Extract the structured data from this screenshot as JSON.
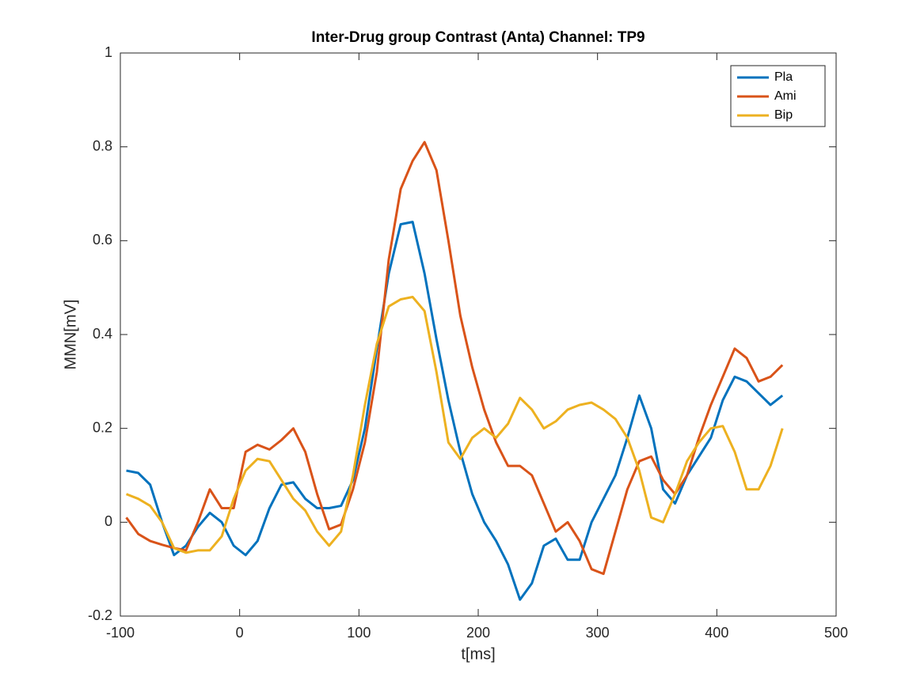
{
  "chart_data": {
    "type": "line",
    "title": "Inter-Drug group Contrast (Anta) Channel: TP9",
    "xlabel": "t[ms]",
    "ylabel": "MMN[mV]",
    "x": [
      -95,
      -85,
      -75,
      -65,
      -55,
      -45,
      -35,
      -25,
      -15,
      -5,
      5,
      15,
      25,
      35,
      45,
      55,
      65,
      75,
      85,
      95,
      105,
      115,
      125,
      135,
      145,
      155,
      165,
      175,
      185,
      195,
      205,
      215,
      225,
      235,
      245,
      255,
      265,
      275,
      285,
      295,
      305,
      315,
      325,
      335,
      345,
      355,
      365,
      375,
      385,
      395,
      405,
      415,
      425,
      435,
      445,
      455
    ],
    "series": [
      {
        "name": "Pla",
        "color": "#0072bd",
        "values": [
          0.11,
          0.105,
          0.08,
          0.0,
          -0.07,
          -0.05,
          -0.01,
          0.02,
          0.0,
          -0.05,
          -0.07,
          -0.04,
          0.03,
          0.08,
          0.085,
          0.05,
          0.03,
          0.03,
          0.035,
          0.09,
          0.2,
          0.37,
          0.53,
          0.635,
          0.64,
          0.53,
          0.39,
          0.26,
          0.15,
          0.06,
          0.0,
          -0.04,
          -0.09,
          -0.165,
          -0.13,
          -0.05,
          -0.035,
          -0.08,
          -0.08,
          0.0,
          0.05,
          0.1,
          0.18,
          0.27,
          0.2,
          0.07,
          0.04,
          0.1,
          0.14,
          0.18,
          0.26,
          0.31,
          0.3,
          0.275,
          0.25,
          0.27
        ]
      },
      {
        "name": "Ami",
        "color": "#d95319",
        "values": [
          0.01,
          -0.025,
          -0.04,
          -0.048,
          -0.055,
          -0.06,
          0.0,
          0.07,
          0.03,
          0.03,
          0.15,
          0.165,
          0.155,
          0.175,
          0.2,
          0.15,
          0.06,
          -0.015,
          -0.005,
          0.07,
          0.17,
          0.32,
          0.56,
          0.71,
          0.77,
          0.81,
          0.75,
          0.6,
          0.44,
          0.33,
          0.24,
          0.17,
          0.12,
          0.12,
          0.1,
          0.04,
          -0.02,
          0.0,
          -0.04,
          -0.1,
          -0.11,
          -0.02,
          0.07,
          0.13,
          0.14,
          0.09,
          0.06,
          0.1,
          0.18,
          0.25,
          0.31,
          0.37,
          0.35,
          0.3,
          0.31,
          0.335
        ]
      },
      {
        "name": "Bip",
        "color": "#edb120",
        "values": [
          0.06,
          0.05,
          0.035,
          0.0,
          -0.055,
          -0.065,
          -0.06,
          -0.06,
          -0.03,
          0.05,
          0.11,
          0.135,
          0.13,
          0.09,
          0.05,
          0.025,
          -0.02,
          -0.05,
          -0.02,
          0.1,
          0.25,
          0.38,
          0.46,
          0.475,
          0.48,
          0.45,
          0.32,
          0.17,
          0.135,
          0.18,
          0.2,
          0.18,
          0.21,
          0.265,
          0.24,
          0.2,
          0.215,
          0.24,
          0.25,
          0.255,
          0.24,
          0.22,
          0.18,
          0.11,
          0.01,
          0.0,
          0.06,
          0.13,
          0.17,
          0.2,
          0.205,
          0.15,
          0.07,
          0.07,
          0.12,
          0.2
        ]
      }
    ],
    "xlim": [
      -100,
      500
    ],
    "xticks": [
      -100,
      0,
      100,
      200,
      300,
      400,
      500
    ],
    "ylim": [
      -0.2,
      1
    ],
    "yticks": [
      -0.2,
      0,
      0.2,
      0.4,
      0.6,
      0.8,
      1
    ],
    "grid": false,
    "legend": "northeast"
  }
}
